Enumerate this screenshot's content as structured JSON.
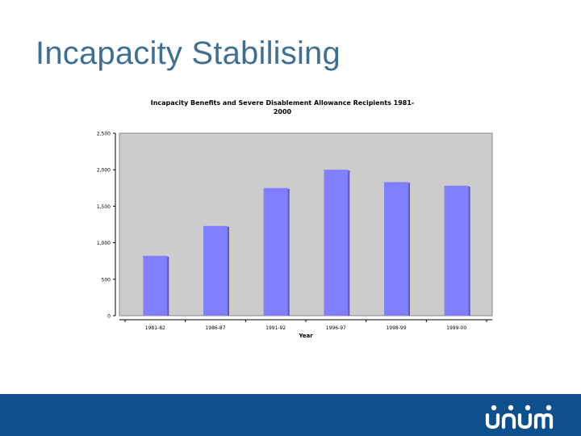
{
  "slide": {
    "title": "Incapacity Stabilising",
    "brand": "unum"
  },
  "colors": {
    "title": "#3f6f93",
    "plot_bg": "#cccccc",
    "bar": "#8080ff",
    "bar_shadow": "#5a5ab8",
    "footer": "#0e4f8e"
  },
  "chart_data": {
    "type": "bar",
    "title_lines": [
      "Incapacity Benefits and Severe Disablement Allowance Recipients 1981-",
      "2000"
    ],
    "categories": [
      "1981-82",
      "1986-87",
      "1991-92",
      "1996-97",
      "1998-99",
      "1999-00"
    ],
    "values": [
      820,
      1230,
      1750,
      2000,
      1830,
      1780
    ],
    "xlabel": "Year",
    "ylabel": "",
    "ylim": [
      0,
      2500
    ],
    "yticks": [
      0,
      500,
      1000,
      1500,
      2000,
      2500
    ],
    "ytick_labels": [
      "0",
      "500",
      "1,000",
      "1,500",
      "2,000",
      "2,500"
    ],
    "grid": false,
    "legend": "none"
  }
}
